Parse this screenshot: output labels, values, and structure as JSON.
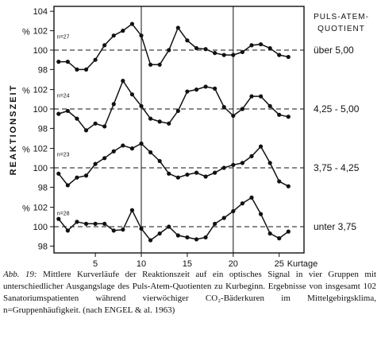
{
  "chart_data": {
    "type": "line",
    "y_axis_label": "REAKTIONSZEIT",
    "y_unit": "%",
    "legend_title_line1": "PULS-ATEM-",
    "legend_title_line2": "QUOTIENT",
    "x_axis_label": "Kurtage",
    "x_ticks": [
      5,
      10,
      15,
      20,
      25
    ],
    "y_ticks_per_panel": [
      104,
      102,
      100,
      98
    ],
    "x": [
      1,
      2,
      3,
      4,
      5,
      6,
      7,
      8,
      9,
      10,
      11,
      12,
      13,
      14,
      15,
      16,
      17,
      18,
      19,
      20,
      21,
      22,
      23,
      24,
      25,
      26
    ],
    "grid": "dashed reference line at 100 per panel; vertical lines at day 10 and 20",
    "series": [
      {
        "name": "über 5,00",
        "n_label": "n=27",
        "values": [
          98.8,
          98.8,
          98.0,
          98.0,
          99.0,
          100.5,
          101.5,
          102.0,
          102.7,
          101.5,
          98.5,
          98.5,
          100.0,
          102.3,
          101.0,
          100.2,
          100.1,
          99.7,
          99.5,
          99.5,
          99.8,
          100.5,
          100.6,
          100.2,
          99.5,
          99.3
        ]
      },
      {
        "name": "4,25 - 5,00",
        "n_label": "n=24",
        "values": [
          99.5,
          99.8,
          99.0,
          97.8,
          98.5,
          98.2,
          100.5,
          102.9,
          101.5,
          100.3,
          99.0,
          98.7,
          98.5,
          99.8,
          101.8,
          102.0,
          102.3,
          102.1,
          100.2,
          99.3,
          100.0,
          101.3,
          101.3,
          100.3,
          99.4,
          99.2
        ]
      },
      {
        "name": "3,75 - 4,25",
        "n_label": "n=23",
        "values": [
          99.4,
          98.2,
          99.0,
          99.2,
          100.4,
          101.0,
          101.7,
          102.3,
          102.0,
          102.5,
          101.6,
          100.7,
          99.4,
          99.0,
          99.3,
          99.5,
          99.1,
          99.5,
          100.0,
          100.3,
          100.5,
          101.2,
          102.2,
          100.5,
          98.6,
          98.1
        ]
      },
      {
        "name": "unter 3,75",
        "n_label": "n=28",
        "values": [
          100.8,
          99.6,
          100.5,
          100.3,
          100.3,
          100.3,
          99.6,
          99.7,
          101.7,
          99.8,
          98.6,
          99.3,
          100.0,
          99.1,
          98.9,
          98.7,
          98.9,
          100.3,
          100.9,
          101.6,
          102.4,
          103.0,
          101.3,
          99.3,
          98.8,
          99.5
        ]
      }
    ]
  },
  "caption": {
    "label": "Abb. 19:",
    "text": "Mittlere Kurverläufe der Reaktionszeit auf ein optisches Signal in vier Gruppen mit unterschiedlicher Ausgangslage des Puls-Atem-Quotienten zu Kurbeginn. Ergebnisse von insgesamt 102 Sanatoriumspatienten während vierwöchiger CO₂-Bäderkuren im Mittelgebirgsklima, n=Gruppenhäufigkeit. (nach ENGEL & al. 1963)"
  }
}
